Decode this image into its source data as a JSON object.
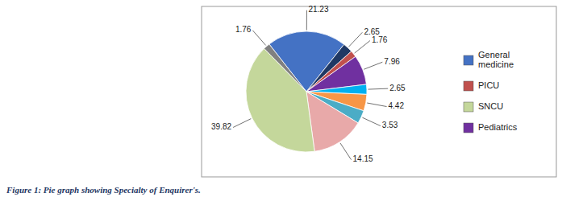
{
  "chart_data": {
    "type": "pie",
    "values": [
      21.23,
      2.65,
      1.76,
      7.96,
      2.65,
      4.42,
      3.53,
      14.15,
      39.82,
      1.76
    ],
    "colors": [
      "#4472C4",
      "#1F3864",
      "#C0504D",
      "#7030A0",
      "#00B0F0",
      "#F79646",
      "#4BACC6",
      "#E8A9A9",
      "#C4D79B",
      "#808080"
    ],
    "data_labels": true,
    "legend_entries": [
      {
        "name": "General\nmedicine",
        "color": "#4472C4"
      },
      {
        "name": "PICU",
        "color": "#C0504D"
      },
      {
        "name": "SNCU",
        "color": "#C4D79B"
      },
      {
        "name": "Pediatrics",
        "color": "#7030A0"
      }
    ],
    "caption": "Figure 1: Pie graph showing Specialty of Enquirer's."
  }
}
